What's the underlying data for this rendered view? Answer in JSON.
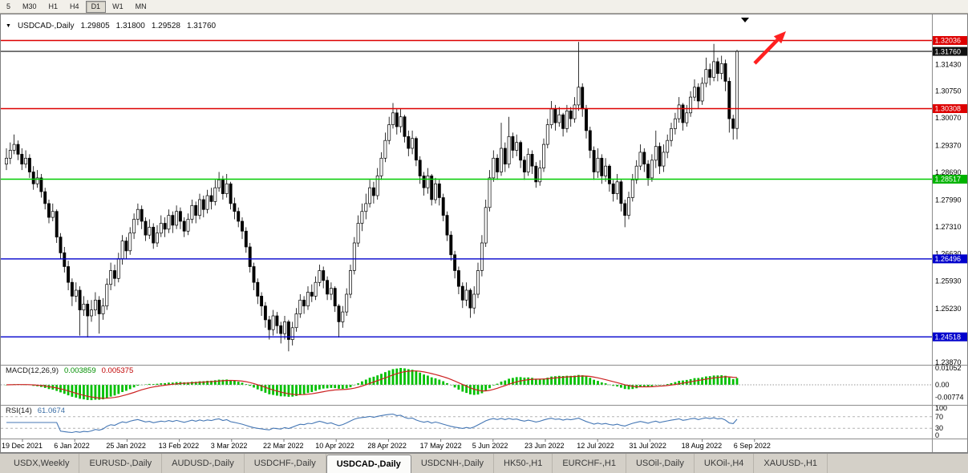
{
  "toolbar": {
    "buttons": [
      {
        "label": "5",
        "active": false
      },
      {
        "label": "M30",
        "active": false
      },
      {
        "label": "H1",
        "active": false
      },
      {
        "label": "H4",
        "active": false
      },
      {
        "label": "D1",
        "active": true
      },
      {
        "label": "W1",
        "active": false
      },
      {
        "label": "MN",
        "active": false
      }
    ]
  },
  "chart_header": {
    "symbol": "USDCAD-,Daily",
    "open": "1.29805",
    "high": "1.31800",
    "low": "1.29528",
    "close": "1.31760"
  },
  "price_axis": {
    "ticks": [
      "1.31430",
      "1.30750",
      "1.30070",
      "1.29370",
      "1.28690",
      "1.27990",
      "1.27310",
      "1.26630",
      "1.25930",
      "1.25230",
      "1.24530",
      "1.23870"
    ],
    "tags": [
      {
        "price": 1.32036,
        "label": "1.32036",
        "color": "#dd0000"
      },
      {
        "price": 1.3176,
        "label": "1.31760",
        "color": "#101010"
      },
      {
        "price": 1.30308,
        "label": "1.30308",
        "color": "#dd0000"
      },
      {
        "price": 1.28517,
        "label": "1.28517",
        "color": "#00b300"
      },
      {
        "price": 1.26496,
        "label": "1.26496",
        "color": "#0000cc"
      },
      {
        "price": 1.24518,
        "label": "1.24518",
        "color": "#0000cc"
      }
    ]
  },
  "indicators": {
    "macd": {
      "label": "MACD(12,26,9)",
      "value_main": "0.003859",
      "value_signal": "0.005375",
      "axis": [
        "0.01052",
        "0.00",
        "-0.00774"
      ],
      "histogram_color": "#00c000",
      "signal_color": "#cc2222"
    },
    "rsi": {
      "label": "RSI(14)",
      "value": "61.0674",
      "axis": [
        "100",
        "70",
        "30",
        "0"
      ],
      "levels": [
        70,
        30
      ],
      "line_color": "#4577b5"
    }
  },
  "annotations": {
    "arrow_color": "#ff2020",
    "shift_marker_color": "#000000"
  },
  "tabs": {
    "items": [
      {
        "label": "USDX,Weekly",
        "active": false
      },
      {
        "label": "EURUSD-,Daily",
        "active": false
      },
      {
        "label": "AUDUSD-,Daily",
        "active": false
      },
      {
        "label": "USDCHF-,Daily",
        "active": false
      },
      {
        "label": "USDCAD-,Daily",
        "active": true
      },
      {
        "label": "USDCNH-,Daily",
        "active": false
      },
      {
        "label": "HK50-,H1",
        "active": false
      },
      {
        "label": "EURCHF-,H1",
        "active": false
      },
      {
        "label": "USOil-,Daily",
        "active": false
      },
      {
        "label": "UKOil-,H4",
        "active": false
      },
      {
        "label": "XAUUSD-,H1",
        "active": false
      }
    ]
  },
  "chart_data": {
    "type": "candlestick",
    "symbol": "USDCAD",
    "timeframe": "Daily",
    "title_ohlc": {
      "open": 1.29805,
      "high": 1.318,
      "low": 1.29528,
      "close": 1.3176
    },
    "ylim": [
      1.2381,
      1.3235
    ],
    "x_labels": [
      "19 Dec 2021",
      "6 Jan 2022",
      "25 Jan 2022",
      "13 Feb 2022",
      "3 Mar 2022",
      "22 Mar 2022",
      "10 Apr 2022",
      "28 Apr 2022",
      "17 May 2022",
      "5 Jun 2022",
      "23 Jun 2022",
      "12 Jul 2022",
      "31 Jul 2022",
      "18 Aug 2022",
      "6 Sep 2022"
    ],
    "levels": [
      {
        "price": 1.32036,
        "color": "#dd0000",
        "type": "resistance"
      },
      {
        "price": 1.30308,
        "color": "#dd0000",
        "type": "resistance"
      },
      {
        "price": 1.28517,
        "color": "#00cc00",
        "type": "pivot"
      },
      {
        "price": 1.26496,
        "color": "#0000cc",
        "type": "support"
      },
      {
        "price": 1.24518,
        "color": "#0000cc",
        "type": "support"
      }
    ],
    "current_price": {
      "value": 1.3176,
      "color": "#111111"
    },
    "indicators": {
      "macd": {
        "params": [
          12,
          26,
          9
        ],
        "current_main": 0.003859,
        "current_signal": 0.005375,
        "scale_max": 0.01052,
        "scale_min": -0.00774
      },
      "rsi": {
        "period": 14,
        "current": 61.0674,
        "levels": [
          70,
          30
        ]
      }
    },
    "ohlc_format": [
      "open",
      "high",
      "low",
      "close"
    ],
    "candles": [
      [
        1.289,
        1.293,
        1.2875,
        1.2905
      ],
      [
        1.2905,
        1.2945,
        1.289,
        1.2925
      ],
      [
        1.2925,
        1.2965,
        1.2915,
        1.294
      ],
      [
        1.294,
        1.295,
        1.29,
        1.2915
      ],
      [
        1.2915,
        1.293,
        1.2875,
        1.289
      ],
      [
        1.289,
        1.2925,
        1.288,
        1.2905
      ],
      [
        1.2905,
        1.2915,
        1.2855,
        1.287
      ],
      [
        1.287,
        1.2885,
        1.2825,
        1.284
      ],
      [
        1.284,
        1.2875,
        1.283,
        1.2855
      ],
      [
        1.2855,
        1.2865,
        1.2805,
        1.282
      ],
      [
        1.282,
        1.283,
        1.2775,
        1.279
      ],
      [
        1.279,
        1.28,
        1.274,
        1.2755
      ],
      [
        1.2755,
        1.279,
        1.2745,
        1.277
      ],
      [
        1.277,
        1.2775,
        1.269,
        1.2705
      ],
      [
        1.2705,
        1.2715,
        1.265,
        1.2665
      ],
      [
        1.2665,
        1.268,
        1.2615,
        1.263
      ],
      [
        1.263,
        1.2645,
        1.257,
        1.259
      ],
      [
        1.259,
        1.26,
        1.253,
        1.2555
      ],
      [
        1.2555,
        1.259,
        1.254,
        1.257
      ],
      [
        1.257,
        1.258,
        1.2455,
        1.252
      ],
      [
        1.252,
        1.2555,
        1.2505,
        1.2535
      ],
      [
        1.2535,
        1.2545,
        1.245,
        1.2505
      ],
      [
        1.2505,
        1.2545,
        1.249,
        1.252
      ],
      [
        1.252,
        1.2565,
        1.2505,
        1.2545
      ],
      [
        1.2545,
        1.2555,
        1.246,
        1.251
      ],
      [
        1.251,
        1.255,
        1.2495,
        1.253
      ],
      [
        1.253,
        1.26,
        1.252,
        1.2585
      ],
      [
        1.2585,
        1.264,
        1.257,
        1.262
      ],
      [
        1.262,
        1.2635,
        1.258,
        1.26
      ],
      [
        1.26,
        1.2665,
        1.259,
        1.265
      ],
      [
        1.265,
        1.271,
        1.2635,
        1.2695
      ],
      [
        1.2695,
        1.2705,
        1.265,
        1.267
      ],
      [
        1.267,
        1.273,
        1.266,
        1.2715
      ],
      [
        1.2715,
        1.2765,
        1.27,
        1.275
      ],
      [
        1.275,
        1.279,
        1.2735,
        1.2775
      ],
      [
        1.2775,
        1.2785,
        1.2725,
        1.2745
      ],
      [
        1.2745,
        1.2755,
        1.2695,
        1.271
      ],
      [
        1.271,
        1.275,
        1.27,
        1.273
      ],
      [
        1.273,
        1.274,
        1.2675,
        1.269
      ],
      [
        1.269,
        1.2735,
        1.268,
        1.2715
      ],
      [
        1.2715,
        1.276,
        1.2705,
        1.274
      ],
      [
        1.274,
        1.2755,
        1.2705,
        1.2725
      ],
      [
        1.2725,
        1.2775,
        1.2715,
        1.276
      ],
      [
        1.276,
        1.277,
        1.2715,
        1.2735
      ],
      [
        1.2735,
        1.2785,
        1.2725,
        1.277
      ],
      [
        1.277,
        1.278,
        1.2725,
        1.2745
      ],
      [
        1.2745,
        1.2755,
        1.2705,
        1.272
      ],
      [
        1.272,
        1.2765,
        1.271,
        1.275
      ],
      [
        1.275,
        1.28,
        1.274,
        1.2785
      ],
      [
        1.2785,
        1.2795,
        1.274,
        1.276
      ],
      [
        1.276,
        1.2815,
        1.275,
        1.28
      ],
      [
        1.28,
        1.281,
        1.2755,
        1.2775
      ],
      [
        1.2775,
        1.2825,
        1.2765,
        1.281
      ],
      [
        1.281,
        1.283,
        1.2775,
        1.2795
      ],
      [
        1.2795,
        1.285,
        1.2785,
        1.283
      ],
      [
        1.283,
        1.287,
        1.282,
        1.285
      ],
      [
        1.285,
        1.286,
        1.28,
        1.2815
      ],
      [
        1.2815,
        1.2865,
        1.2805,
        1.284
      ],
      [
        1.284,
        1.2845,
        1.2775,
        1.279
      ],
      [
        1.279,
        1.2805,
        1.275,
        1.277
      ],
      [
        1.277,
        1.278,
        1.273,
        1.2745
      ],
      [
        1.2745,
        1.2755,
        1.27,
        1.272
      ],
      [
        1.272,
        1.273,
        1.2665,
        1.268
      ],
      [
        1.268,
        1.269,
        1.2615,
        1.263
      ],
      [
        1.263,
        1.264,
        1.257,
        1.259
      ],
      [
        1.259,
        1.26,
        1.2535,
        1.2555
      ],
      [
        1.2555,
        1.2565,
        1.2505,
        1.253
      ],
      [
        1.253,
        1.254,
        1.2475,
        1.2495
      ],
      [
        1.2495,
        1.2505,
        1.2445,
        1.247
      ],
      [
        1.247,
        1.252,
        1.2455,
        1.2505
      ],
      [
        1.2505,
        1.2515,
        1.246,
        1.248
      ],
      [
        1.248,
        1.249,
        1.2435,
        1.246
      ],
      [
        1.246,
        1.2505,
        1.2445,
        1.249
      ],
      [
        1.249,
        1.2495,
        1.2415,
        1.2445
      ],
      [
        1.2445,
        1.249,
        1.243,
        1.2475
      ],
      [
        1.2475,
        1.2525,
        1.2465,
        1.251
      ],
      [
        1.251,
        1.256,
        1.25,
        1.2545
      ],
      [
        1.2545,
        1.2555,
        1.251,
        1.253
      ],
      [
        1.253,
        1.258,
        1.252,
        1.2565
      ],
      [
        1.2565,
        1.2585,
        1.254,
        1.2555
      ],
      [
        1.2555,
        1.2605,
        1.2545,
        1.259
      ],
      [
        1.259,
        1.2635,
        1.258,
        1.262
      ],
      [
        1.262,
        1.263,
        1.2575,
        1.2595
      ],
      [
        1.2595,
        1.2605,
        1.2545,
        1.256
      ],
      [
        1.256,
        1.259,
        1.2545,
        1.2575
      ],
      [
        1.2575,
        1.258,
        1.2515,
        1.253
      ],
      [
        1.253,
        1.2535,
        1.245,
        1.249
      ],
      [
        1.249,
        1.253,
        1.2475,
        1.2515
      ],
      [
        1.2515,
        1.2575,
        1.2505,
        1.256
      ],
      [
        1.256,
        1.2635,
        1.255,
        1.262
      ],
      [
        1.262,
        1.2705,
        1.261,
        1.269
      ],
      [
        1.269,
        1.276,
        1.268,
        1.274
      ],
      [
        1.274,
        1.279,
        1.272,
        1.277
      ],
      [
        1.277,
        1.2815,
        1.275,
        1.279
      ],
      [
        1.279,
        1.285,
        1.278,
        1.283
      ],
      [
        1.283,
        1.2845,
        1.279,
        1.281
      ],
      [
        1.281,
        1.288,
        1.28,
        1.286
      ],
      [
        1.286,
        1.292,
        1.285,
        1.2905
      ],
      [
        1.2905,
        1.297,
        1.2895,
        1.295
      ],
      [
        1.295,
        1.301,
        1.294,
        1.299
      ],
      [
        1.299,
        1.3045,
        1.298,
        1.302
      ],
      [
        1.302,
        1.303,
        1.2965,
        1.2985
      ],
      [
        1.2985,
        1.303,
        1.297,
        1.301
      ],
      [
        1.301,
        1.3015,
        1.2945,
        1.296
      ],
      [
        1.296,
        1.2975,
        1.291,
        1.293
      ],
      [
        1.293,
        1.2975,
        1.2915,
        1.2955
      ],
      [
        1.2955,
        1.296,
        1.2885,
        1.29
      ],
      [
        1.29,
        1.291,
        1.284,
        1.286
      ],
      [
        1.286,
        1.287,
        1.281,
        1.283
      ],
      [
        1.283,
        1.288,
        1.2815,
        1.286
      ],
      [
        1.286,
        1.2865,
        1.2785,
        1.28
      ],
      [
        1.28,
        1.2855,
        1.279,
        1.284
      ],
      [
        1.284,
        1.285,
        1.2785,
        1.2805
      ],
      [
        1.2805,
        1.2815,
        1.2745,
        1.276
      ],
      [
        1.276,
        1.277,
        1.2695,
        1.271
      ],
      [
        1.271,
        1.272,
        1.2645,
        1.266
      ],
      [
        1.266,
        1.267,
        1.26,
        1.262
      ],
      [
        1.262,
        1.263,
        1.256,
        1.258
      ],
      [
        1.258,
        1.259,
        1.2525,
        1.2545
      ],
      [
        1.2545,
        1.259,
        1.253,
        1.257
      ],
      [
        1.257,
        1.2575,
        1.25,
        1.2525
      ],
      [
        1.2525,
        1.258,
        1.251,
        1.256
      ],
      [
        1.256,
        1.264,
        1.255,
        1.262
      ],
      [
        1.262,
        1.271,
        1.2605,
        1.269
      ],
      [
        1.269,
        1.28,
        1.268,
        1.278
      ],
      [
        1.278,
        1.2875,
        1.277,
        1.2855
      ],
      [
        1.2855,
        1.2925,
        1.2845,
        1.2905
      ],
      [
        1.2905,
        1.2915,
        1.285,
        1.287
      ],
      [
        1.287,
        1.2995,
        1.286,
        1.293
      ],
      [
        1.293,
        1.2945,
        1.287,
        1.289
      ],
      [
        1.289,
        1.301,
        1.288,
        1.296
      ],
      [
        1.296,
        1.297,
        1.2905,
        1.2925
      ],
      [
        1.2925,
        1.2965,
        1.291,
        1.2945
      ],
      [
        1.2945,
        1.295,
        1.288,
        1.29
      ],
      [
        1.29,
        1.291,
        1.285,
        1.287
      ],
      [
        1.287,
        1.293,
        1.286,
        1.2915
      ],
      [
        1.2915,
        1.2925,
        1.2865,
        1.2885
      ],
      [
        1.2885,
        1.2895,
        1.283,
        1.2845
      ],
      [
        1.2845,
        1.29,
        1.2835,
        1.288
      ],
      [
        1.288,
        1.2955,
        1.287,
        1.294
      ],
      [
        1.294,
        1.3005,
        1.293,
        1.299
      ],
      [
        1.299,
        1.305,
        1.298,
        1.303
      ],
      [
        1.303,
        1.304,
        1.2975,
        1.2995
      ],
      [
        1.2995,
        1.3035,
        1.2985,
        1.3015
      ],
      [
        1.3015,
        1.302,
        1.296,
        1.298
      ],
      [
        1.298,
        1.304,
        1.297,
        1.3025
      ],
      [
        1.3025,
        1.3035,
        1.2985,
        1.3005
      ],
      [
        1.3005,
        1.306,
        1.2995,
        1.304
      ],
      [
        1.304,
        1.32,
        1.3025,
        1.3085
      ],
      [
        1.3085,
        1.3095,
        1.301,
        1.303
      ],
      [
        1.303,
        1.304,
        1.2955,
        1.2975
      ],
      [
        1.2975,
        1.2985,
        1.2905,
        1.2925
      ],
      [
        1.2925,
        1.2935,
        1.285,
        1.287
      ],
      [
        1.287,
        1.293,
        1.2855,
        1.2905
      ],
      [
        1.2905,
        1.2915,
        1.284,
        1.286
      ],
      [
        1.286,
        1.2905,
        1.2845,
        1.2885
      ],
      [
        1.2885,
        1.289,
        1.282,
        1.284
      ],
      [
        1.284,
        1.285,
        1.2795,
        1.2815
      ],
      [
        1.2815,
        1.2865,
        1.28,
        1.2845
      ],
      [
        1.2845,
        1.285,
        1.277,
        1.279
      ],
      [
        1.279,
        1.28,
        1.273,
        1.276
      ],
      [
        1.276,
        1.282,
        1.275,
        1.2805
      ],
      [
        1.2805,
        1.2865,
        1.2795,
        1.285
      ],
      [
        1.285,
        1.29,
        1.284,
        1.2885
      ],
      [
        1.2885,
        1.294,
        1.2875,
        1.292
      ],
      [
        1.292,
        1.293,
        1.287,
        1.289
      ],
      [
        1.289,
        1.29,
        1.2835,
        1.2855
      ],
      [
        1.2855,
        1.2915,
        1.2845,
        1.29
      ],
      [
        1.29,
        1.2975,
        1.288,
        1.2935
      ],
      [
        1.2935,
        1.2945,
        1.2865,
        1.2885
      ],
      [
        1.2885,
        1.294,
        1.287,
        1.292
      ],
      [
        1.292,
        1.2965,
        1.2905,
        1.295
      ],
      [
        1.295,
        1.2995,
        1.2935,
        1.298
      ],
      [
        1.298,
        1.302,
        1.2965,
        1.3005
      ],
      [
        1.3005,
        1.306,
        1.2995,
        1.304
      ],
      [
        1.304,
        1.3045,
        1.2975,
        1.2995
      ],
      [
        1.2995,
        1.304,
        1.2985,
        1.302
      ],
      [
        1.302,
        1.3075,
        1.301,
        1.306
      ],
      [
        1.306,
        1.3105,
        1.305,
        1.3085
      ],
      [
        1.3085,
        1.3095,
        1.303,
        1.305
      ],
      [
        1.305,
        1.311,
        1.304,
        1.3095
      ],
      [
        1.3095,
        1.316,
        1.3085,
        1.313
      ],
      [
        1.313,
        1.3145,
        1.309,
        1.311
      ],
      [
        1.311,
        1.3195,
        1.31,
        1.315
      ],
      [
        1.315,
        1.316,
        1.31,
        1.312
      ],
      [
        1.312,
        1.3165,
        1.3105,
        1.3145
      ],
      [
        1.3145,
        1.3155,
        1.3075,
        1.31
      ],
      [
        1.31,
        1.311,
        1.297,
        1.3005
      ],
      [
        1.3005,
        1.3015,
        1.2952,
        1.29805
      ],
      [
        1.29805,
        1.318,
        1.29528,
        1.3176
      ]
    ]
  }
}
